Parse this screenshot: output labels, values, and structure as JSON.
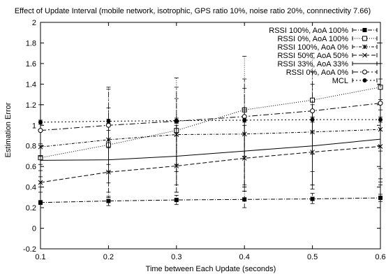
{
  "chart_data": {
    "type": "line",
    "title": "Effect of Update Interval (mobile network, isotrophic, GPS ratio 10%, noise ratio 20%, connnectivity 7.66)",
    "xlabel": "Time between Each Update (seconds)",
    "ylabel": "Estimation Error",
    "xlim": [
      0.1,
      0.6
    ],
    "ylim": [
      -0.2,
      2
    ],
    "x": [
      0.1,
      0.2,
      0.3,
      0.4,
      0.5,
      0.6
    ],
    "x_tick_labels": [
      "0.1",
      "0.2",
      "0.3",
      "0.4",
      "0.5",
      "0.6"
    ],
    "y_ticks": [
      -0.2,
      0,
      0.2,
      0.4,
      0.6,
      0.8,
      1,
      1.2,
      1.4,
      1.6,
      1.8,
      2
    ],
    "y_tick_labels": [
      "-0.2",
      "0",
      "0.2",
      "0.4",
      "0.6",
      "0.8",
      "1",
      "1.2",
      "1.4",
      "1.6",
      "1.8",
      "2"
    ],
    "grid": false,
    "legend_position": "top-right",
    "series": [
      {
        "name": "RSSI 100%, AoA 100%",
        "values": [
          0.25,
          0.265,
          0.275,
          0.28,
          0.285,
          0.295
        ],
        "err_low": [
          0.23,
          0.22,
          0.23,
          0.2,
          0.24,
          0.26
        ],
        "err_high": [
          0.27,
          0.31,
          0.32,
          0.36,
          0.34,
          0.33
        ],
        "marker": "filled-square",
        "dash": "6,2,1,2"
      },
      {
        "name": "RSSI 0%, AoA 100%",
        "values": [
          0.685,
          0.81,
          0.95,
          1.15,
          1.245,
          1.37
        ],
        "err_low": [
          0.4,
          0.3,
          0.35,
          0.4,
          0.55,
          0.58
        ],
        "err_high": [
          0.96,
          1.37,
          1.46,
          1.67,
          1.7,
          1.8
        ],
        "marker": "open-square",
        "dash": "1,2"
      },
      {
        "name": "RSSI  100%, AoA 0%",
        "values": [
          0.79,
          0.86,
          0.91,
          0.915,
          0.935,
          0.96
        ],
        "err_low": [
          0.62,
          0.55,
          0.55,
          0.42,
          0.42,
          0.45
        ],
        "err_high": [
          0.96,
          1.17,
          1.26,
          1.36,
          1.4,
          1.45
        ],
        "marker": "star",
        "dash": "4,2,1,2"
      },
      {
        "name": "RSSI 50%, AoA 50%",
        "values": [
          0.445,
          0.545,
          0.605,
          0.68,
          0.74,
          0.795
        ],
        "err_low": [
          0.35,
          0.35,
          0.35,
          0.36,
          0.38,
          0.42
        ],
        "err_high": [
          0.56,
          0.78,
          0.9,
          1.0,
          1.08,
          1.15
        ],
        "marker": "cross",
        "dash": "6,3"
      },
      {
        "name": "RSSI 33%, AoA 33%",
        "values": [
          0.66,
          0.665,
          0.7,
          0.75,
          0.8,
          0.865
        ],
        "err_low": [
          0.5,
          0.44,
          0.42,
          0.4,
          0.42,
          0.48
        ],
        "err_high": [
          0.82,
          0.95,
          1.0,
          1.15,
          1.2,
          1.25
        ],
        "marker": "none",
        "dash": ""
      },
      {
        "name": "RSSI 0%, AoA 0%",
        "values": [
          0.95,
          1.0,
          1.04,
          1.085,
          1.14,
          1.215
        ],
        "err_low": [
          0.7,
          0.62,
          0.62,
          0.7,
          0.72,
          0.75
        ],
        "err_high": [
          1.2,
          1.35,
          1.37,
          1.45,
          1.52,
          1.6
        ],
        "marker": "open-circle",
        "dash": "8,3,2,3"
      },
      {
        "name": "MCL",
        "values": [
          1.03,
          1.04,
          1.045,
          1.05,
          1.055,
          1.055
        ],
        "err_low": [
          1.01,
          1.02,
          1.02,
          1.03,
          1.03,
          1.03
        ],
        "err_high": [
          1.05,
          1.06,
          1.07,
          1.07,
          1.08,
          1.08
        ],
        "marker": "filled-circle",
        "dash": "2,3"
      }
    ]
  }
}
